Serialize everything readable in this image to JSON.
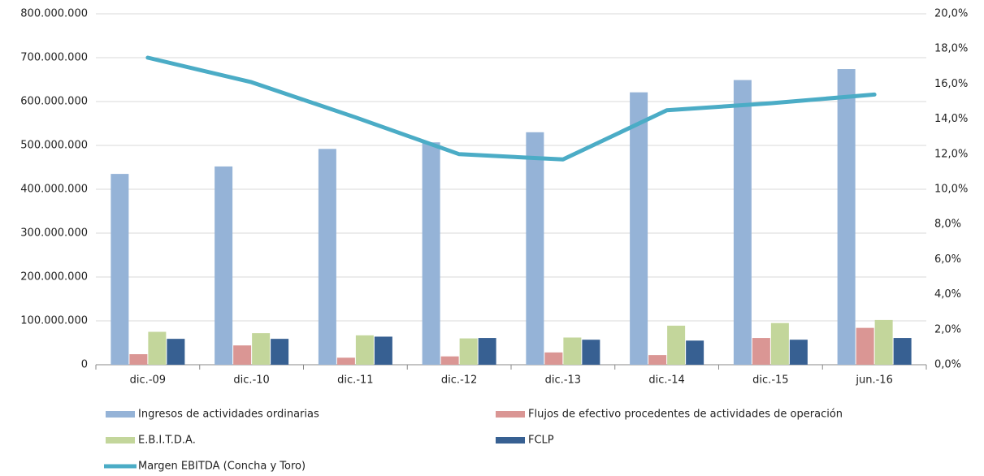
{
  "chart_data": {
    "type": "bar",
    "categories": [
      "dic.-09",
      "dic.-10",
      "dic.-11",
      "dic.-12",
      "dic.-13",
      "dic.-14",
      "dic.-15",
      "jun.-16"
    ],
    "series": [
      {
        "name": "Ingresos de actividades ordinarias",
        "color": "#95b3d7",
        "values": [
          435000000,
          452000000,
          492000000,
          507000000,
          530000000,
          621000000,
          649000000,
          674000000
        ]
      },
      {
        "name": "Flujos de efectivo  procedentes de actividades de operación",
        "color": "#da9694",
        "values": [
          24000000,
          44000000,
          16000000,
          19000000,
          28000000,
          22000000,
          61000000,
          84000000
        ]
      },
      {
        "name": "E.B.I.T.D.A.",
        "color": "#c3d69b",
        "values": [
          75000000,
          72000000,
          67000000,
          60000000,
          62000000,
          89000000,
          95000000,
          102000000
        ]
      },
      {
        "name": "FCLP",
        "color": "#376092",
        "values": [
          59000000,
          59000000,
          64000000,
          61000000,
          57000000,
          55000000,
          57000000,
          61000000
        ]
      },
      {
        "name": "Margen EBITDA (Concha y Toro)",
        "color": "#4bacc6",
        "type": "line",
        "axis": "y2",
        "values": [
          17.5,
          16.1,
          14.1,
          12.0,
          11.7,
          14.5,
          14.9,
          15.4
        ]
      }
    ],
    "ylim": [
      0,
      800000000
    ],
    "yticks": [
      0,
      {
        "value": 100000000,
        "label": "100.000.000"
      },
      {
        "value": 200000000,
        "label": "200.000.000"
      },
      {
        "value": 300000000,
        "label": "300.000.000"
      },
      {
        "value": 400000000,
        "label": "400.000.000"
      },
      {
        "value": 500000000,
        "label": "500.000.000"
      },
      {
        "value": 600000000,
        "label": "600.000.000"
      },
      {
        "value": 700000000,
        "label": "700.000.000"
      },
      {
        "value": 800000000,
        "label": "800.000.000"
      }
    ],
    "y2lim": [
      0,
      20
    ],
    "y2ticks": [
      {
        "value": 0,
        "label": "0,0%"
      },
      {
        "value": 2,
        "label": "2,0%"
      },
      {
        "value": 4,
        "label": "4,0%"
      },
      {
        "value": 6,
        "label": "6,0%"
      },
      {
        "value": 8,
        "label": "8,0%"
      },
      {
        "value": 10,
        "label": "10,0%"
      },
      {
        "value": 12,
        "label": "12,0%"
      },
      {
        "value": 14,
        "label": "14,0%"
      },
      {
        "value": 16,
        "label": "16,0%"
      },
      {
        "value": 18,
        "label": "18,0%"
      },
      {
        "value": 20,
        "label": "20,0%"
      }
    ],
    "grid": true
  }
}
